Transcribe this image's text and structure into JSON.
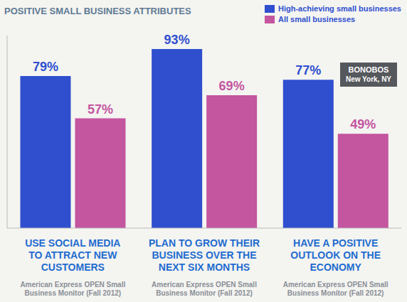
{
  "chart_data": {
    "type": "bar",
    "title": "POSITIVE SMALL BUSINESS ATTRIBUTES",
    "categories": [
      "USE SOCIAL MEDIA TO ATTRACT NEW CUSTOMERS",
      "PLAN TO GROW THEIR BUSINESS OVER THE NEXT SIX MONTHS",
      "HAVE A POSITIVE OUTLOOK ON THE ECONOMY"
    ],
    "series": [
      {
        "name": "High-achieving small businesses",
        "color": "#2f4fcf",
        "values": [
          79,
          93,
          77
        ],
        "value_labels": [
          "79%",
          "93%",
          "77%"
        ]
      },
      {
        "name": "All small businesses",
        "color": "#c4559f",
        "values": [
          57,
          69,
          49
        ],
        "value_labels": [
          "57%",
          "69%",
          "49%"
        ]
      }
    ],
    "ylim": [
      0,
      100
    ],
    "tick_labels": false,
    "data_labels": true,
    "legend": "top-right",
    "annotations": [
      "BONOBOS",
      "New York, NY"
    ],
    "notes": [
      "American Express OPEN Small Business Monitor (Fall 2012)",
      "American Express OPEN Small Business Monitor (Fall 2012)",
      "American Express OPEN Small Business Monitor (Fall 2012)"
    ]
  }
}
